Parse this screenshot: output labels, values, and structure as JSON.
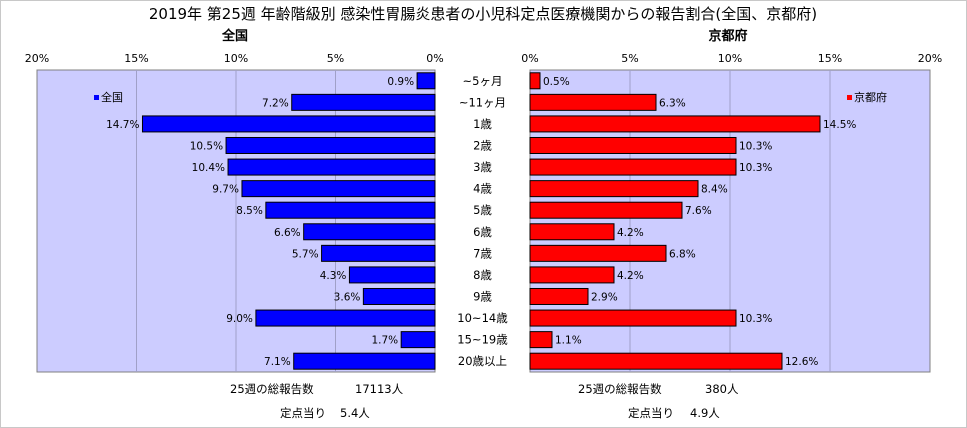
{
  "title": "2019年 第25週 年齢階級別 感染性胃腸炎患者の小児科定点医療機関からの報告割合(全国、京都府)",
  "chart_data": [
    {
      "type": "bar",
      "orientation": "horizontal",
      "title": "全国",
      "categories": [
        "~5ヶ月",
        "~11ヶ月",
        "1歳",
        "2歳",
        "3歳",
        "4歳",
        "5歳",
        "6歳",
        "7歳",
        "8歳",
        "9歳",
        "10~14歳",
        "15~19歳",
        "20歳以上"
      ],
      "series": [
        {
          "name": "全国",
          "values": [
            0.9,
            7.2,
            14.7,
            10.5,
            10.4,
            9.7,
            8.5,
            6.6,
            5.7,
            4.3,
            3.6,
            9.0,
            1.7,
            7.1
          ],
          "color": "#0000ff"
        }
      ],
      "value_labels": [
        "0.9%",
        "7.2%",
        "14.7%",
        "10.5%",
        "10.4%",
        "9.7%",
        "8.5%",
        "6.6%",
        "5.7%",
        "4.3%",
        "3.6%",
        "9.0%",
        "1.7%",
        "7.1%"
      ],
      "xlim": [
        0,
        20
      ],
      "xticks": [
        "20%",
        "15%",
        "10%",
        "5%",
        "0%"
      ],
      "axis_direction": "reversed",
      "plot_background": "#ccccff",
      "legend": "top-left",
      "grid": true
    },
    {
      "type": "bar",
      "orientation": "horizontal",
      "title": "京都府",
      "categories": [
        "~5ヶ月",
        "~11ヶ月",
        "1歳",
        "2歳",
        "3歳",
        "4歳",
        "5歳",
        "6歳",
        "7歳",
        "8歳",
        "9歳",
        "10~14歳",
        "15~19歳",
        "20歳以上"
      ],
      "series": [
        {
          "name": "京都府",
          "values": [
            0.5,
            6.3,
            14.5,
            10.3,
            10.3,
            8.4,
            7.6,
            4.2,
            6.8,
            4.2,
            2.9,
            10.3,
            1.1,
            12.6
          ],
          "color": "#ff0000"
        }
      ],
      "value_labels": [
        "0.5%",
        "6.3%",
        "14.5%",
        "10.3%",
        "10.3%",
        "8.4%",
        "7.6%",
        "4.2%",
        "6.8%",
        "4.2%",
        "2.9%",
        "10.3%",
        "1.1%",
        "12.6%"
      ],
      "xlim": [
        0,
        20
      ],
      "xticks": [
        "0%",
        "5%",
        "10%",
        "15%",
        "20%"
      ],
      "plot_background": "#ccccff",
      "legend": "top-right",
      "grid": true
    }
  ],
  "footer": {
    "national_total_label": "25週の総報告数",
    "national_total_value": "17113人",
    "national_per_site_label": "定点当り",
    "national_per_site_value": "5.4人",
    "kyoto_total_label": "25週の総報告数",
    "kyoto_total_value": "380人",
    "kyoto_per_site_label": "定点当り",
    "kyoto_per_site_value": "4.9人"
  }
}
